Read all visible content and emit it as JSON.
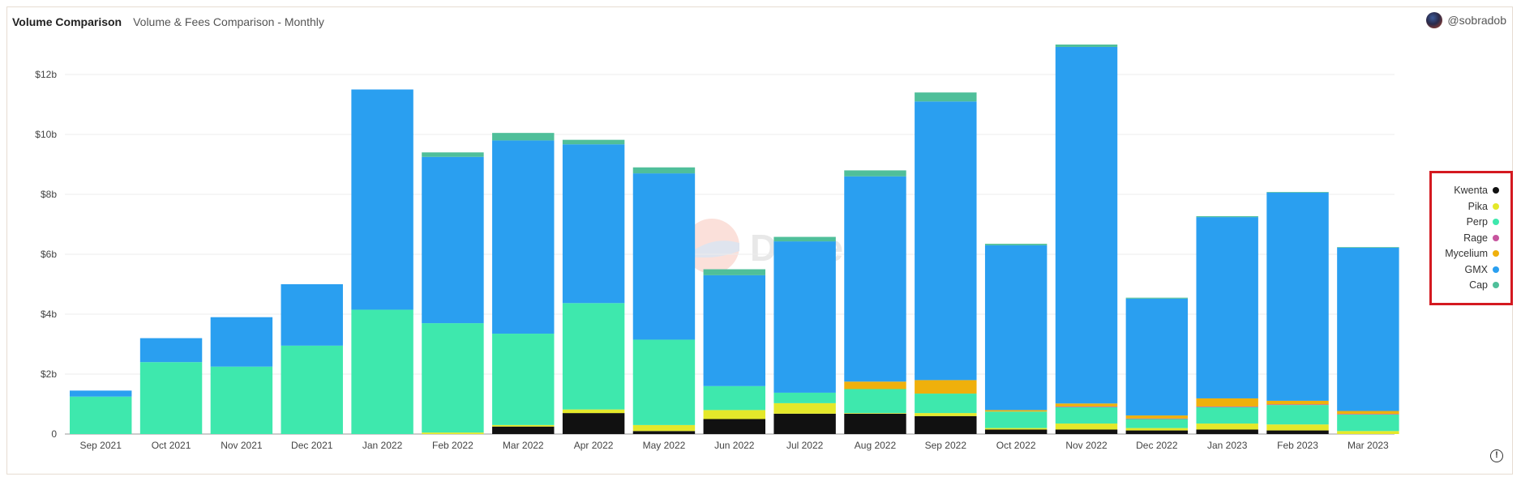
{
  "header": {
    "title": "Volume Comparison",
    "subtitle": "Volume & Fees Comparison - Monthly",
    "username": "@sobradob"
  },
  "watermark": "Dune",
  "colors": {
    "Kwenta": "#111111",
    "Pika": "#e4e82a",
    "Perp": "#3ee8ad",
    "Rage": "#c7559e",
    "Mycelium": "#efb00c",
    "GMX": "#2a9ff0",
    "Cap": "#4fbf9a"
  },
  "legend": [
    "Kwenta",
    "Pika",
    "Perp",
    "Rage",
    "Mycelium",
    "GMX",
    "Cap"
  ],
  "info_icon": "info-icon",
  "chart_data": {
    "type": "bar",
    "stacked": true,
    "categories": [
      "Sep 2021",
      "Oct 2021",
      "Nov 2021",
      "Dec 2021",
      "Jan 2022",
      "Feb 2022",
      "Mar 2022",
      "Apr 2022",
      "May 2022",
      "Jun 2022",
      "Jul 2022",
      "Aug 2022",
      "Sep 2022",
      "Oct 2022",
      "Nov 2022",
      "Dec 2022",
      "Jan 2023",
      "Feb 2023",
      "Mar 2023"
    ],
    "y_ticks": [
      "0",
      "$2b",
      "$4b",
      "$6b",
      "$8b",
      "$10b",
      "$12b"
    ],
    "ylim": [
      0,
      13
    ],
    "y_unit": "billions USD",
    "series": [
      {
        "name": "Kwenta",
        "values": [
          0,
          0,
          0,
          0,
          0,
          0,
          0.25,
          0.7,
          0.1,
          0.5,
          0.68,
          0.68,
          0.6,
          0.15,
          0.15,
          0.12,
          0.15,
          0.12,
          0
        ]
      },
      {
        "name": "Pika",
        "values": [
          0,
          0,
          0,
          0,
          0,
          0.05,
          0.05,
          0.12,
          0.2,
          0.3,
          0.35,
          0.02,
          0.1,
          0.05,
          0.2,
          0.08,
          0.2,
          0.2,
          0.1
        ]
      },
      {
        "name": "Perp",
        "values": [
          1.25,
          2.4,
          2.25,
          2.95,
          4.15,
          3.65,
          3.05,
          3.55,
          2.85,
          0.8,
          0.35,
          0.8,
          0.65,
          0.55,
          0.55,
          0.3,
          0.55,
          0.65,
          0.55
        ]
      },
      {
        "name": "Rage",
        "values": [
          0,
          0,
          0,
          0,
          0,
          0,
          0,
          0,
          0,
          0,
          0,
          0,
          0,
          0,
          0.02,
          0.02,
          0.02,
          0.02,
          0.02
        ]
      },
      {
        "name": "Mycelium",
        "values": [
          0,
          0,
          0,
          0,
          0,
          0,
          0,
          0,
          0,
          0,
          0,
          0.25,
          0.45,
          0.05,
          0.1,
          0.1,
          0.27,
          0.12,
          0.1
        ]
      },
      {
        "name": "GMX",
        "values": [
          0.2,
          0.8,
          1.65,
          2.05,
          7.35,
          5.55,
          6.45,
          5.3,
          5.55,
          3.7,
          5.05,
          6.85,
          9.3,
          5.5,
          11.9,
          3.9,
          6.05,
          6.95,
          5.45
        ]
      },
      {
        "name": "Cap",
        "values": [
          0,
          0,
          0,
          0,
          0,
          0.15,
          0.25,
          0.15,
          0.2,
          0.2,
          0.15,
          0.2,
          0.3,
          0.05,
          0.08,
          0.03,
          0.03,
          0.02,
          0.02
        ]
      }
    ]
  }
}
